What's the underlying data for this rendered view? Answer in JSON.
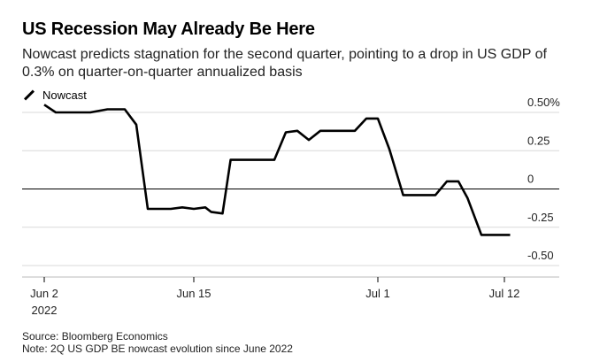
{
  "header": {
    "title": "US Recession May Already Be Here",
    "subtitle": "Nowcast predicts stagnation for the second quarter, pointing to a drop in US GDP of 0.3% on quarter-on-quarter annualized basis"
  },
  "legend": {
    "label": "Nowcast"
  },
  "footer": {
    "source": "Source: Bloomberg Economics",
    "note": "Note: 2Q US GDP BE nowcast evolution since June 2022"
  },
  "colors": {
    "line": "#000000",
    "grid": "#d9d9d9",
    "zero": "#000000"
  },
  "chart_data": {
    "type": "line",
    "title": "US Recession May Already Be Here",
    "xlabel": "",
    "ylabel": "",
    "ylim": [
      -0.5,
      0.5
    ],
    "xlim": [
      0,
      41
    ],
    "y_ticks": [
      {
        "value": 0.5,
        "label": "0.50%"
      },
      {
        "value": 0.25,
        "label": "0.25"
      },
      {
        "value": 0,
        "label": "0"
      },
      {
        "value": -0.25,
        "label": "-0.25"
      },
      {
        "value": -0.5,
        "label": "-0.50"
      }
    ],
    "x_ticks": [
      {
        "x": 0,
        "label": "Jun 2",
        "sublabel": "2022"
      },
      {
        "x": 13,
        "label": "Jun 15"
      },
      {
        "x": 29,
        "label": "Jul 1"
      },
      {
        "x": 40,
        "label": "Jul 12"
      }
    ],
    "series": [
      {
        "name": "Nowcast",
        "points": [
          [
            0,
            0.55
          ],
          [
            1,
            0.5
          ],
          [
            2.5,
            0.5
          ],
          [
            4,
            0.5
          ],
          [
            5.5,
            0.52
          ],
          [
            7,
            0.52
          ],
          [
            8,
            0.42
          ],
          [
            9,
            -0.13
          ],
          [
            10,
            -0.13
          ],
          [
            11,
            -0.13
          ],
          [
            12,
            -0.12
          ],
          [
            13,
            -0.13
          ],
          [
            14,
            -0.12
          ],
          [
            14.5,
            -0.15
          ],
          [
            15.5,
            -0.16
          ],
          [
            16.2,
            0.19
          ],
          [
            19,
            0.19
          ],
          [
            20,
            0.19
          ],
          [
            21,
            0.37
          ],
          [
            22,
            0.38
          ],
          [
            23,
            0.32
          ],
          [
            24,
            0.38
          ],
          [
            26,
            0.38
          ],
          [
            27,
            0.38
          ],
          [
            28,
            0.46
          ],
          [
            29,
            0.46
          ],
          [
            30,
            0.26
          ],
          [
            31.2,
            -0.04
          ],
          [
            32.5,
            -0.04
          ],
          [
            34,
            -0.04
          ],
          [
            35,
            0.05
          ],
          [
            36,
            0.05
          ],
          [
            36.8,
            -0.06
          ],
          [
            38,
            -0.3
          ],
          [
            39.5,
            -0.3
          ],
          [
            40.5,
            -0.3
          ]
        ]
      }
    ]
  }
}
